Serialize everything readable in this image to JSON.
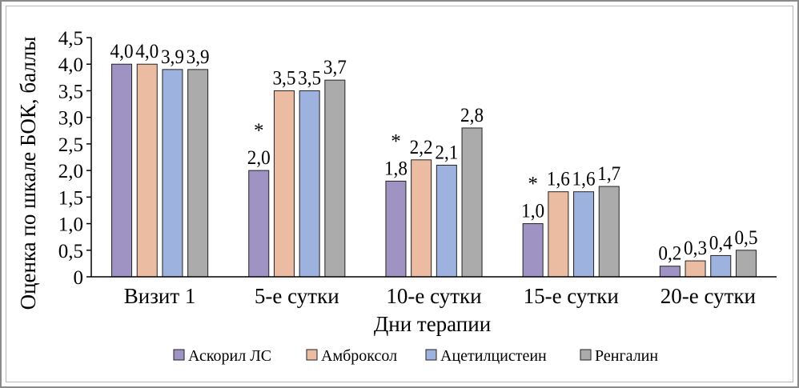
{
  "chart_data": {
    "type": "bar",
    "xlabel": "Дни терапии",
    "ylabel": "Оценка по шкале БОК, баллы",
    "ylim": [
      0,
      4.5
    ],
    "yticks": [
      "0",
      "0,5",
      "1,0",
      "1,5",
      "2,0",
      "2,5",
      "3,0",
      "3,5",
      "4,0",
      "4,5"
    ],
    "grid": false,
    "legend_position": "bottom",
    "categories": [
      "Визит 1",
      "5-е сутки",
      "10-е сутки",
      "15-е сутки",
      "20-е сутки"
    ],
    "series": [
      {
        "name": "Аскорил ЛС",
        "color": "#9e93c3",
        "values": [
          4.0,
          2.0,
          1.8,
          1.0,
          0.2
        ],
        "labels": [
          "4,0",
          "2,0",
          "1,8",
          "1,0",
          "0,2"
        ],
        "markers": [
          "",
          "*",
          "*",
          "*",
          ""
        ]
      },
      {
        "name": "Амброксол",
        "color": "#ecbca2",
        "values": [
          4.0,
          3.5,
          2.2,
          1.6,
          0.3
        ],
        "labels": [
          "4,0",
          "3,5",
          "2,2",
          "1,6",
          "0,3"
        ],
        "markers": [
          "",
          "",
          "",
          "",
          ""
        ]
      },
      {
        "name": "Ацетилцистеин",
        "color": "#9db2de",
        "values": [
          3.9,
          3.5,
          2.1,
          1.6,
          0.4
        ],
        "labels": [
          "3,9",
          "3,5",
          "2,1",
          "1,6",
          "0,4"
        ],
        "markers": [
          "",
          "",
          "",
          "",
          ""
        ]
      },
      {
        "name": "Ренгалин",
        "color": "#ababab",
        "values": [
          3.9,
          3.7,
          2.8,
          1.7,
          0.5
        ],
        "labels": [
          "3,9",
          "3,7",
          "2,8",
          "1,7",
          "0,5"
        ],
        "markers": [
          "",
          "",
          "",
          "",
          ""
        ]
      }
    ]
  }
}
